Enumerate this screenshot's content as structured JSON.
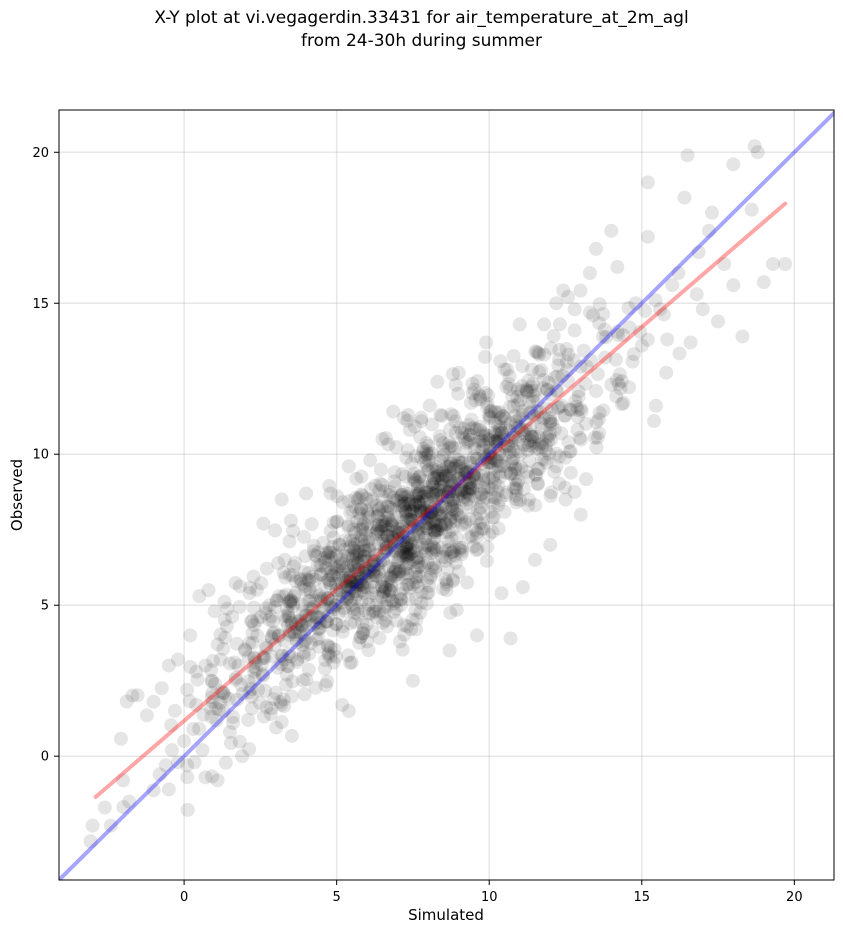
{
  "chart_data": {
    "type": "scatter",
    "title_lines": [
      "X-Y plot at vi.vegagerdin.33431 for air_temperature_at_2m_agl",
      "from 24-30h during summer"
    ],
    "xlabel": "Simulated",
    "ylabel": "Observed",
    "xlim": [
      -4.1,
      21.3
    ],
    "ylim": [
      -4.1,
      21.4
    ],
    "xticks": [
      0,
      5,
      10,
      15,
      20
    ],
    "yticks": [
      0,
      5,
      10,
      15,
      20
    ],
    "grid": true,
    "point_color": "#000000",
    "point_alpha": 0.1,
    "points_description": "approx 1600 observation/simulation pairs clustered along the diagonal",
    "points": [
      [
        -3.0,
        -2.3
      ],
      [
        -2.6,
        -1.7
      ],
      [
        -2.4,
        -2.3
      ],
      [
        -2.0,
        -0.8
      ],
      [
        -1.8,
        -1.5
      ],
      [
        -0.8,
        -0.6
      ],
      [
        -0.6,
        -0.3
      ],
      [
        -0.5,
        -1.1
      ],
      [
        -0.4,
        0.2
      ],
      [
        -0.2,
        -0.2
      ],
      [
        0.0,
        0.5
      ],
      [
        0.1,
        -0.3
      ],
      [
        0.3,
        0.9
      ],
      [
        0.4,
        1.7
      ],
      [
        0.6,
        0.2
      ],
      [
        0.7,
        -0.7
      ],
      [
        0.9,
        1.3
      ],
      [
        1.1,
        -0.8
      ],
      [
        1.3,
        2.1
      ],
      [
        1.5,
        0.8
      ],
      [
        -0.5,
        3.0
      ],
      [
        -0.2,
        3.2
      ],
      [
        0.2,
        4.0
      ],
      [
        0.5,
        5.3
      ],
      [
        0.8,
        5.5
      ],
      [
        1.0,
        4.8
      ],
      [
        1.2,
        3.2
      ],
      [
        1.4,
        4.3
      ],
      [
        1.6,
        1.3
      ],
      [
        1.9,
        0.0
      ],
      [
        -1.0,
        1.8
      ],
      [
        -0.3,
        1.5
      ],
      [
        0.1,
        2.2
      ],
      [
        0.4,
        2.8
      ],
      [
        0.7,
        3.0
      ],
      [
        0.9,
        2.5
      ],
      [
        1.1,
        3.7
      ],
      [
        1.3,
        1.5
      ],
      [
        1.7,
        2.6
      ],
      [
        2.0,
        3.5
      ],
      [
        2.1,
        1.2
      ],
      [
        2.3,
        2.8
      ],
      [
        2.4,
        4.5
      ],
      [
        2.6,
        3.3
      ],
      [
        2.8,
        5.0
      ],
      [
        3.0,
        2.1
      ],
      [
        3.1,
        4.0
      ],
      [
        3.3,
        6.5
      ],
      [
        3.5,
        3.3
      ],
      [
        3.6,
        5.3
      ],
      [
        3.8,
        4.1
      ],
      [
        3.9,
        2.5
      ],
      [
        4.1,
        5.8
      ],
      [
        4.2,
        4.6
      ],
      [
        4.4,
        3.9
      ],
      [
        4.5,
        6.3
      ],
      [
        4.7,
        5.2
      ],
      [
        4.8,
        3.6
      ],
      [
        5.0,
        5.5
      ],
      [
        5.1,
        7.0
      ],
      [
        5.2,
        4.3
      ],
      [
        5.3,
        6.0
      ],
      [
        5.4,
        1.5
      ],
      [
        5.5,
        5.0
      ],
      [
        5.6,
        6.8
      ],
      [
        5.7,
        4.7
      ],
      [
        5.8,
        8.2
      ],
      [
        5.9,
        5.6
      ],
      [
        6.0,
        3.8
      ],
      [
        6.1,
        7.2
      ],
      [
        6.2,
        6.1
      ],
      [
        6.3,
        5.0
      ],
      [
        6.4,
        8.8
      ],
      [
        6.5,
        6.5
      ],
      [
        6.6,
        4.5
      ],
      [
        6.7,
        7.5
      ],
      [
        6.8,
        6.0
      ],
      [
        6.9,
        9.4
      ],
      [
        7.0,
        7.2
      ],
      [
        7.1,
        5.2
      ],
      [
        7.2,
        8.3
      ],
      [
        7.3,
        6.6
      ],
      [
        7.4,
        10.8
      ],
      [
        7.5,
        7.8
      ],
      [
        7.6,
        4.2
      ],
      [
        7.7,
        8.7
      ],
      [
        7.8,
        7.0
      ],
      [
        7.9,
        9.9
      ],
      [
        8.0,
        8.0
      ],
      [
        8.1,
        6.0
      ],
      [
        8.2,
        9.2
      ],
      [
        8.3,
        7.5
      ],
      [
        8.4,
        11.3
      ],
      [
        8.5,
        8.8
      ],
      [
        8.6,
        5.5
      ],
      [
        8.7,
        9.6
      ],
      [
        8.8,
        8.2
      ],
      [
        8.9,
        12.3
      ],
      [
        9.0,
        9.3
      ],
      [
        9.1,
        6.9
      ],
      [
        9.2,
        10.5
      ],
      [
        9.3,
        8.7
      ],
      [
        9.4,
        11.7
      ],
      [
        9.5,
        9.9
      ],
      [
        9.6,
        7.4
      ],
      [
        9.7,
        10.9
      ],
      [
        9.8,
        9.3
      ],
      [
        9.9,
        13.7
      ],
      [
        10.0,
        10.2
      ],
      [
        10.1,
        7.9
      ],
      [
        10.2,
        11.4
      ],
      [
        10.3,
        9.6
      ],
      [
        10.5,
        12.8
      ],
      [
        10.6,
        10.3
      ],
      [
        10.7,
        3.9
      ],
      [
        10.8,
        11.6
      ],
      [
        10.9,
        9.0
      ],
      [
        11.0,
        14.3
      ],
      [
        11.2,
        10.8
      ],
      [
        11.3,
        8.5
      ],
      [
        11.5,
        12.1
      ],
      [
        11.6,
        10.2
      ],
      [
        11.8,
        13.3
      ],
      [
        12.0,
        11.0
      ],
      [
        12.2,
        9.6
      ],
      [
        12.4,
        12.6
      ],
      [
        12.6,
        10.4
      ],
      [
        12.8,
        14.1
      ],
      [
        13.0,
        11.5
      ],
      [
        13.2,
        12.9
      ],
      [
        13.4,
        14.6
      ],
      [
        13.6,
        10.7
      ],
      [
        13.8,
        13.2
      ],
      [
        14.0,
        12.3
      ],
      [
        14.2,
        16.2
      ],
      [
        14.4,
        11.7
      ],
      [
        14.6,
        14.2
      ],
      [
        14.8,
        15.0
      ],
      [
        15.0,
        13.6
      ],
      [
        15.2,
        17.2
      ],
      [
        15.4,
        11.1
      ],
      [
        15.6,
        14.8
      ],
      [
        15.8,
        12.7
      ],
      [
        16.0,
        15.6
      ],
      [
        16.2,
        16.0
      ],
      [
        16.4,
        18.5
      ],
      [
        16.6,
        13.7
      ],
      [
        16.8,
        15.3
      ],
      [
        17.0,
        14.8
      ],
      [
        17.3,
        18.0
      ],
      [
        17.5,
        14.4
      ],
      [
        17.7,
        16.3
      ],
      [
        18.0,
        15.6
      ],
      [
        18.3,
        13.9
      ],
      [
        18.6,
        18.1
      ],
      [
        18.8,
        20.0
      ],
      [
        19.0,
        15.7
      ],
      [
        19.3,
        16.3
      ],
      [
        19.7,
        16.3
      ],
      [
        16.5,
        19.9
      ],
      [
        15.2,
        19.0
      ],
      [
        18.0,
        19.6
      ],
      [
        18.7,
        20.2
      ],
      [
        17.2,
        17.4
      ],
      [
        14.0,
        17.4
      ],
      [
        13.5,
        16.8
      ],
      [
        13.3,
        16.0
      ],
      [
        12.8,
        14.8
      ],
      [
        12.2,
        15.0
      ],
      [
        11.8,
        14.3
      ],
      [
        6.1,
        9.8
      ],
      [
        6.5,
        10.5
      ],
      [
        7.2,
        11.2
      ],
      [
        8.3,
        12.4
      ],
      [
        9.0,
        12.7
      ],
      [
        4.8,
        8.7
      ],
      [
        5.4,
        9.6
      ],
      [
        3.2,
        8.5
      ],
      [
        2.6,
        7.7
      ],
      [
        3.5,
        7.8
      ],
      [
        4.0,
        8.7
      ],
      [
        7.5,
        2.5
      ],
      [
        8.7,
        3.5
      ],
      [
        9.6,
        4.0
      ],
      [
        10.4,
        5.4
      ],
      [
        11.1,
        5.6
      ],
      [
        11.5,
        6.5
      ],
      [
        12.0,
        7.0
      ],
      [
        12.5,
        8.5
      ],
      [
        13.0,
        8.0
      ]
    ],
    "regression_line": {
      "color": "#ff0000",
      "alpha": 0.35,
      "from": [
        -2.9,
        -1.35
      ],
      "to": [
        19.7,
        18.3
      ]
    },
    "identity_line": {
      "color": "#0000ff",
      "alpha": 0.35,
      "from": [
        -4.1,
        -4.1
      ],
      "to": [
        21.3,
        21.3
      ]
    }
  }
}
